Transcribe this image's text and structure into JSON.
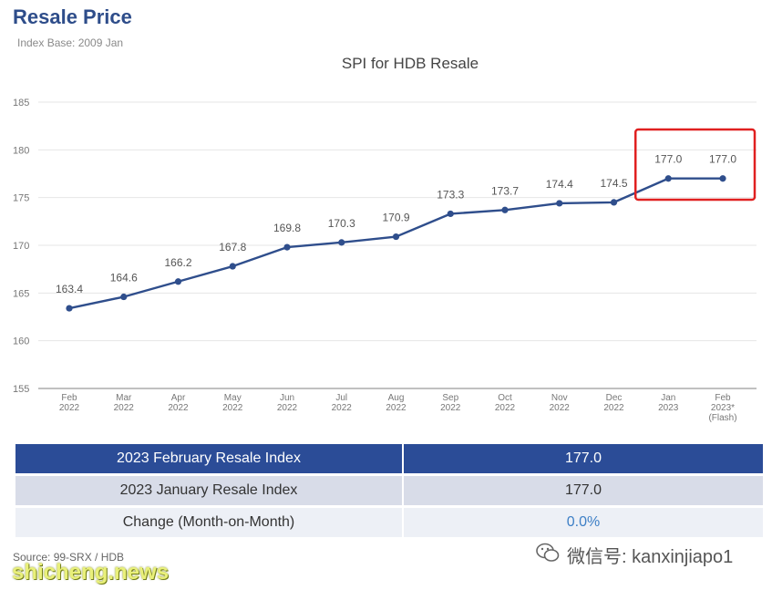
{
  "page": {
    "title": "Resale Price",
    "subtitle": "Index Base: 2009 Jan",
    "source": "Source: 99-SRX / HDB"
  },
  "chart_data": {
    "type": "line",
    "title": "SPI for HDB Resale",
    "xlabel": "",
    "ylabel": "",
    "ylim": [
      155,
      185
    ],
    "yticks": [
      155,
      160,
      165,
      170,
      175,
      180,
      185
    ],
    "grid": true,
    "categories": [
      [
        "Feb",
        "2022"
      ],
      [
        "Mar",
        "2022"
      ],
      [
        "Apr",
        "2022"
      ],
      [
        "May",
        "2022"
      ],
      [
        "Jun",
        "2022"
      ],
      [
        "Jul",
        "2022"
      ],
      [
        "Aug",
        "2022"
      ],
      [
        "Sep",
        "2022"
      ],
      [
        "Oct",
        "2022"
      ],
      [
        "Nov",
        "2022"
      ],
      [
        "Dec",
        "2022"
      ],
      [
        "Jan",
        "2023"
      ],
      [
        "Feb",
        "2023*",
        "(Flash)"
      ]
    ],
    "series": [
      {
        "values": [
          163.4,
          164.6,
          166.2,
          167.8,
          169.8,
          170.3,
          170.9,
          173.3,
          173.7,
          174.4,
          174.5,
          177.0,
          177.0
        ],
        "labels": [
          "163.4",
          "164.6",
          "166.2",
          "167.8",
          "169.8",
          "170.3",
          "170.9",
          "173.3",
          "173.7",
          "174.4",
          "174.5",
          "177.0",
          "177.0"
        ],
        "color": "#2f4e8c"
      }
    ],
    "highlight": {
      "from_index": 11,
      "to_index": 12,
      "color": "#e02020"
    }
  },
  "summary_table": [
    {
      "label": "2023 February Resale Index",
      "value": "177.0"
    },
    {
      "label": "2023 January Resale Index",
      "value": "177.0"
    },
    {
      "label": "Change (Month-on-Month)",
      "value": "0.0%"
    }
  ],
  "watermarks": {
    "site": "shicheng.news",
    "wechat": "微信号: kanxinjiapo1"
  },
  "colors": {
    "title": "#2e4d8a",
    "line": "#2f4e8c",
    "header_row": "#2b4c97",
    "highlight_box": "#e02020",
    "change_value": "#3d7fc6"
  }
}
